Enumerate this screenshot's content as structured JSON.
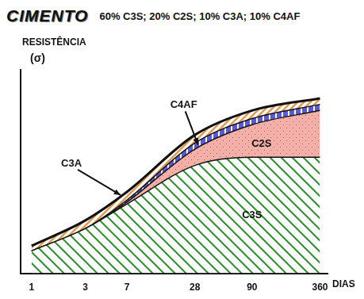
{
  "chart_data": {
    "type": "area",
    "title": "CIMENTO",
    "subtitle": "60% C3S; 20% C2S; 10% C3A; 10% C4AF",
    "x_label": "DIAS",
    "y_label": "RESISTÊNCIA (σ)",
    "x": [
      1,
      3,
      7,
      28,
      90,
      360
    ],
    "series": [
      {
        "name": "C3S",
        "color": "#2f8f2f",
        "values": [
          11,
          22,
          34,
          53,
          57,
          57
        ]
      },
      {
        "name": "C2S",
        "color": "#f2b0a8",
        "values": [
          0,
          0,
          1,
          8,
          16,
          23
        ]
      },
      {
        "name": "C4AF",
        "color": "#5a5ad6",
        "values": [
          0,
          0,
          1,
          3,
          3,
          3
        ]
      },
      {
        "name": "C3A",
        "color": "#e39a50",
        "values": [
          2.5,
          4,
          4,
          4,
          4,
          3
        ]
      }
    ],
    "stacked": true,
    "log": "x",
    "xlim": [
      0.8,
      420
    ],
    "xticks": [
      1,
      3,
      7,
      28,
      90,
      360
    ],
    "ylim": [
      0,
      100
    ],
    "grid": false,
    "tick_labels": "x"
  }
}
